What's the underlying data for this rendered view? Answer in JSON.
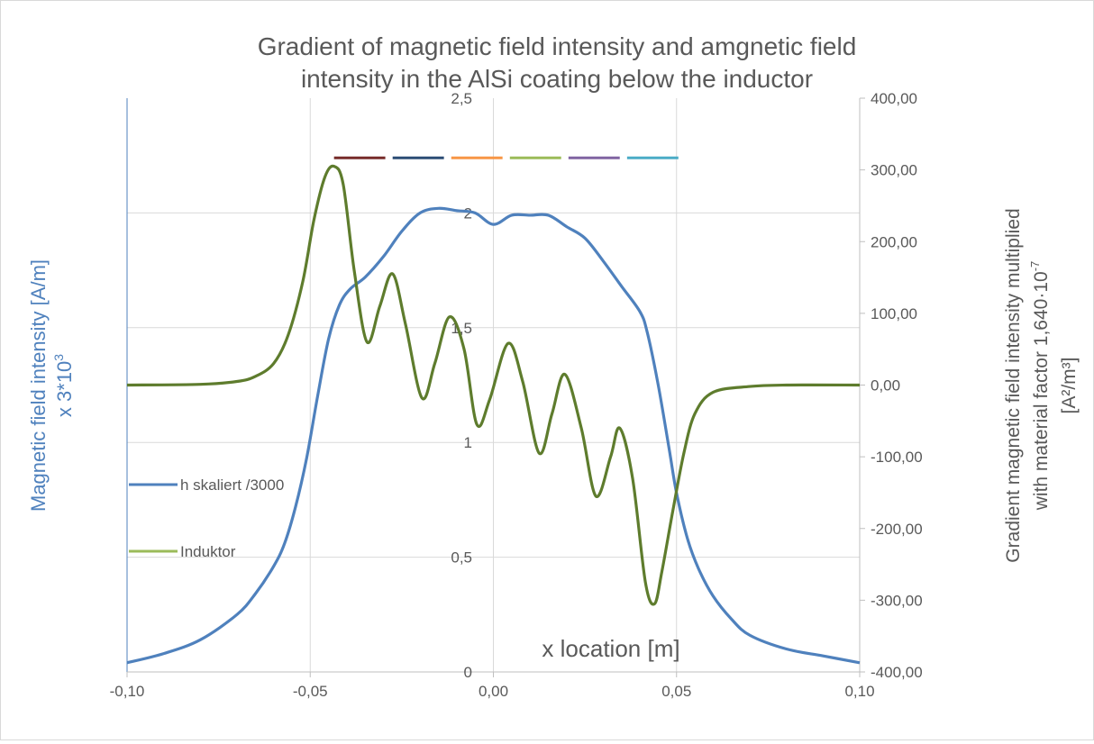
{
  "chart_data": {
    "type": "line",
    "title_line1": "Gradient of magnetic field intensity and amgnetic field",
    "title_line2": "intensity in the AlSi coating below the inductor",
    "xlabel": "x location [m]",
    "ylabel_left_line1": "Magnetic field intensity [A/m]",
    "ylabel_left_line2": "x 3*10",
    "ylabel_left_sup": "3",
    "ylabel_right_line1": "Gradient magnetic field intensity  multiplied",
    "ylabel_right_line2": "with material factor 1,640·10",
    "ylabel_right_sup": "-7",
    "ylabel_right_line3": "[A²/m³]",
    "x_ticks": [
      "-0,10",
      "-0,05",
      "0,00",
      "0,05",
      "0,10"
    ],
    "x_tick_values": [
      -0.1,
      -0.05,
      0,
      0.05,
      0.1
    ],
    "xlim": [
      -0.1,
      0.1
    ],
    "y_left_ticks": [
      "0",
      "0,5",
      "1",
      "1,5",
      "2",
      "2,5"
    ],
    "y_left_tick_values": [
      0,
      0.5,
      1,
      1.5,
      2,
      2.5
    ],
    "ylim_left": [
      0,
      2.5
    ],
    "y_right_ticks": [
      "-400,00",
      "-300,00",
      "-200,00",
      "-100,00",
      "0,00",
      "100,00",
      "200,00",
      "300,00",
      "400,00"
    ],
    "y_right_tick_values": [
      -400,
      -300,
      -200,
      -100,
      0,
      100,
      200,
      300,
      400
    ],
    "ylim_right": [
      -400,
      400
    ],
    "grid": true,
    "legend": [
      {
        "label": "h skaliert /3000",
        "color": "#4f81bd"
      },
      {
        "label": "Induktor",
        "color": "#9bbb59"
      }
    ],
    "inductor_segments": {
      "y": 2.24,
      "x_ranges": [
        [
          -0.0435,
          -0.0295
        ],
        [
          -0.0275,
          -0.0135
        ],
        [
          -0.0115,
          0.0025
        ],
        [
          0.0045,
          0.0185
        ],
        [
          0.0205,
          0.0345
        ],
        [
          0.0365,
          0.0505
        ]
      ],
      "colors": [
        "#772c2a",
        "#2c4d75",
        "#f79646",
        "#9bbb59",
        "#8064a2",
        "#4bacc6"
      ]
    },
    "series": [
      {
        "name": "h skaliert /3000",
        "axis": "left",
        "color": "#4f81bd",
        "x": [
          -0.1,
          -0.09,
          -0.08,
          -0.07,
          -0.065,
          -0.06,
          -0.057,
          -0.054,
          -0.051,
          -0.048,
          -0.045,
          -0.042,
          -0.039,
          -0.035,
          -0.03,
          -0.025,
          -0.02,
          -0.015,
          -0.01,
          -0.005,
          0,
          0.005,
          0.01,
          0.015,
          0.02,
          0.025,
          0.03,
          0.035,
          0.04,
          0.042,
          0.045,
          0.048,
          0.05,
          0.053,
          0.056,
          0.06,
          0.065,
          0.07,
          0.08,
          0.09,
          0.1
        ],
        "y": [
          0.04,
          0.08,
          0.14,
          0.25,
          0.34,
          0.46,
          0.56,
          0.72,
          0.93,
          1.2,
          1.45,
          1.6,
          1.67,
          1.72,
          1.81,
          1.92,
          2.0,
          2.02,
          2.01,
          2.0,
          1.95,
          1.99,
          1.99,
          1.99,
          1.94,
          1.89,
          1.79,
          1.68,
          1.57,
          1.48,
          1.25,
          0.97,
          0.78,
          0.58,
          0.45,
          0.33,
          0.23,
          0.16,
          0.1,
          0.07,
          0.04
        ]
      },
      {
        "name": "Induktor",
        "axis": "right",
        "color": "#5e7c2d",
        "x": [
          -0.1,
          -0.08,
          -0.07,
          -0.065,
          -0.06,
          -0.056,
          -0.052,
          -0.049,
          -0.046,
          -0.0435,
          -0.041,
          -0.038,
          -0.0345,
          -0.031,
          -0.0275,
          -0.024,
          -0.0195,
          -0.016,
          -0.012,
          -0.008,
          -0.0045,
          -0.001,
          0.004,
          0.008,
          0.0125,
          0.016,
          0.0195,
          0.024,
          0.028,
          0.032,
          0.0345,
          0.038,
          0.0415,
          0.044,
          0.046,
          0.049,
          0.052,
          0.055,
          0.06,
          0.07,
          0.08,
          0.1
        ],
        "y": [
          0,
          1,
          5,
          12,
          30,
          70,
          145,
          230,
          290,
          305,
          280,
          160,
          60,
          110,
          155,
          85,
          -18,
          30,
          95,
          50,
          -55,
          -20,
          58,
          5,
          -95,
          -40,
          15,
          -60,
          -155,
          -100,
          -60,
          -130,
          -275,
          -305,
          -260,
          -175,
          -95,
          -40,
          -10,
          -2,
          0,
          0
        ]
      }
    ]
  }
}
